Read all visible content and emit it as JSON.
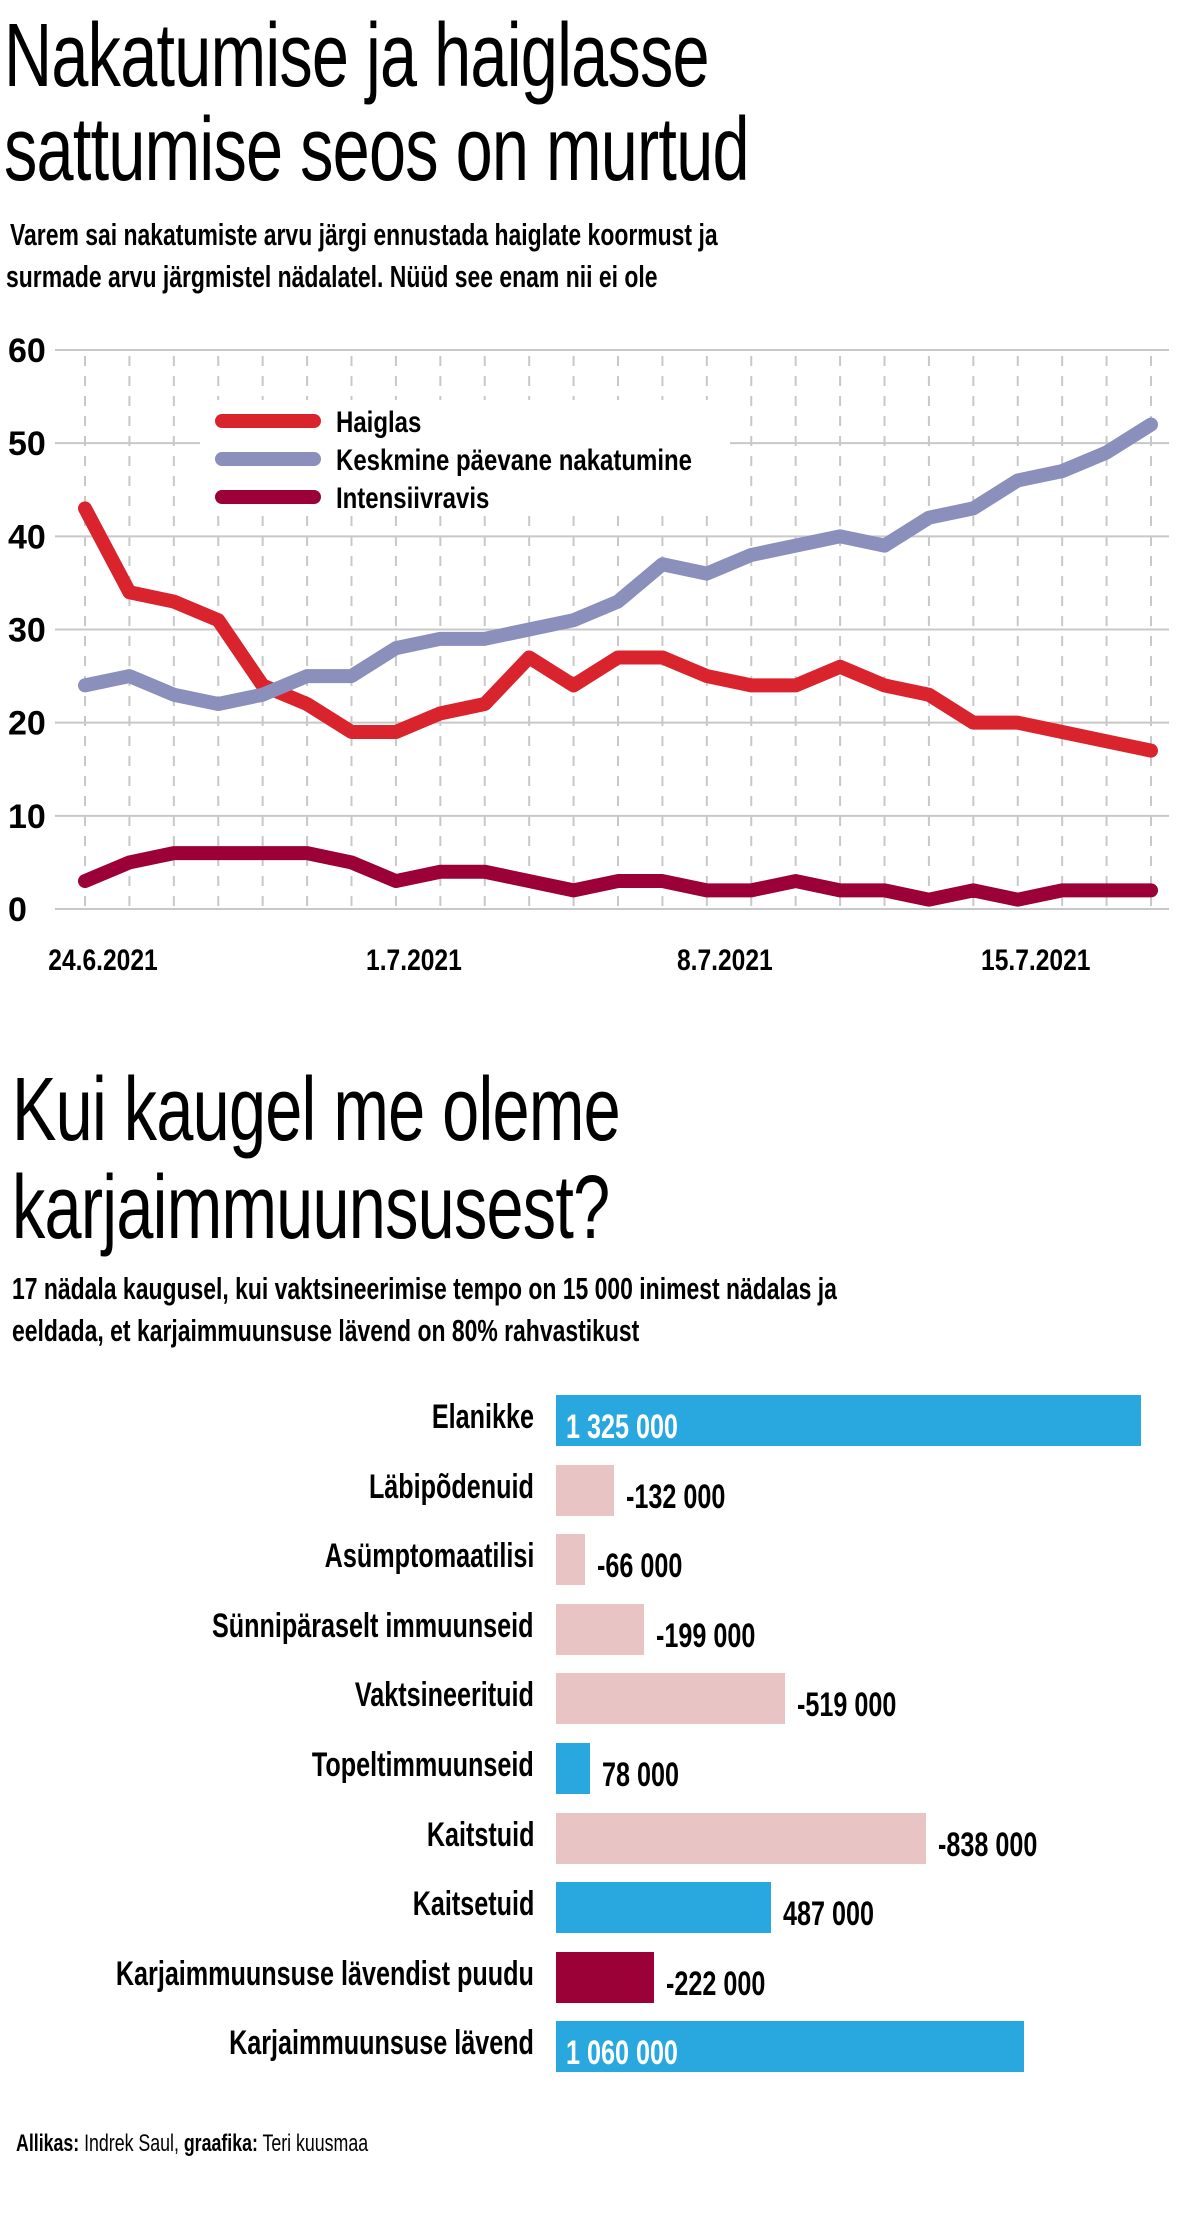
{
  "chart_data": [
    {
      "type": "line",
      "title": "Nakatumise ja haiglasse sattumise seos on murtud",
      "subtitle": "Varem sai nakatumiste arvu järgi ennustada haiglate koormust ja surmade arvu järgmistel nädalatel. Nüüd see enam nii ei ole",
      "title_lines": [
        "Nakatumise ja haiglasse",
        "sattumise seos on murtud"
      ],
      "subtitle_lines": [
        "Varem sai nakatumiste arvu järgi ennustada haiglate koormust ja",
        "surmade arvu järgmistel nädalatel. Nüüd see enam nii ei ole"
      ],
      "x_tick_labels": [
        {
          "index": 0,
          "label": "24.6.2021"
        },
        {
          "index": 7,
          "label": "1.7.2021"
        },
        {
          "index": 14,
          "label": "8.7.2021"
        },
        {
          "index": 21,
          "label": "15.7.2021"
        }
      ],
      "ylim": [
        0,
        60
      ],
      "y_ticks": [
        0,
        10,
        20,
        30,
        40,
        50,
        60
      ],
      "grid": true,
      "legend_placement": "top-left",
      "series": [
        {
          "name": "Haiglas",
          "color": "#d9232d",
          "values": [
            43,
            34,
            33,
            31,
            24,
            22,
            19,
            19,
            21,
            22,
            27,
            24,
            27,
            27,
            25,
            24,
            24,
            26,
            24,
            23,
            20,
            20,
            19,
            18,
            17
          ]
        },
        {
          "name": "Keskmine päevane nakatumine",
          "color": "#8a8fbb",
          "values": [
            24,
            25,
            23,
            22,
            23,
            25,
            25,
            28,
            29,
            29,
            30,
            31,
            33,
            37,
            36,
            38,
            39,
            40,
            39,
            42,
            43,
            46,
            47,
            49,
            52
          ]
        },
        {
          "name": "Intensiivravis",
          "color": "#9b0036",
          "values": [
            3,
            5,
            6,
            6,
            6,
            6,
            5,
            3,
            4,
            4,
            3,
            2,
            3,
            3,
            2,
            2,
            3,
            2,
            2,
            1,
            2,
            1,
            2,
            2,
            2
          ]
        }
      ]
    },
    {
      "type": "bar",
      "orientation": "horizontal",
      "title": "Kui kaugel me oleme karjaimmuunsusest?",
      "title_lines": [
        "Kui kaugel me oleme",
        "karjaimmuunsusest?"
      ],
      "subtitle_lines": [
        "17 nädala kaugusel, kui vaktsineerimise tempo on 15 000 inimest nädalas ja",
        "eeldada, et karjaimmuunsuse lävend on 80% rahvastikust"
      ],
      "bars": [
        {
          "category": "Elanikke",
          "value": 1325000,
          "label": "1 325 000",
          "color": "#29a8e0",
          "inside": true
        },
        {
          "category": "Läbipõdenuid",
          "value": -132000,
          "label": "-132 000",
          "color": "#e8c4c4",
          "inside": false
        },
        {
          "category": "Asümptomaatilisi",
          "value": -66000,
          "label": "-66 000",
          "color": "#e8c4c4",
          "inside": false
        },
        {
          "category": "Sünnipäraselt immuunseid",
          "value": -199000,
          "label": "-199 000",
          "color": "#e8c4c4",
          "inside": false
        },
        {
          "category": "Vaktsineerituid",
          "value": -519000,
          "label": "-519 000",
          "color": "#e8c4c4",
          "inside": false
        },
        {
          "category": "Topeltimmuunseid",
          "value": 78000,
          "label": "78 000",
          "color": "#29a8e0",
          "inside": false
        },
        {
          "category": "Kaitstuid",
          "value": -838000,
          "label": "-838 000",
          "color": "#e8c4c4",
          "inside": false
        },
        {
          "category": "Kaitsetuid",
          "value": 487000,
          "label": "487 000",
          "color": "#29a8e0",
          "inside": false
        },
        {
          "category": "Karjaimmuunsuse lävendist puudu",
          "value": -222000,
          "label": "-222 000",
          "color": "#9b0036",
          "inside": false
        },
        {
          "category": "Karjaimmuunsuse lävend",
          "value": 1060000,
          "label": "1 060 000",
          "color": "#29a8e0",
          "inside": true
        }
      ]
    }
  ],
  "footer": {
    "source_label": "Allikas:",
    "source_value": "Indrek Saul,",
    "graphics_label": "graafika:",
    "graphics_value": "Teri kuusmaa"
  }
}
